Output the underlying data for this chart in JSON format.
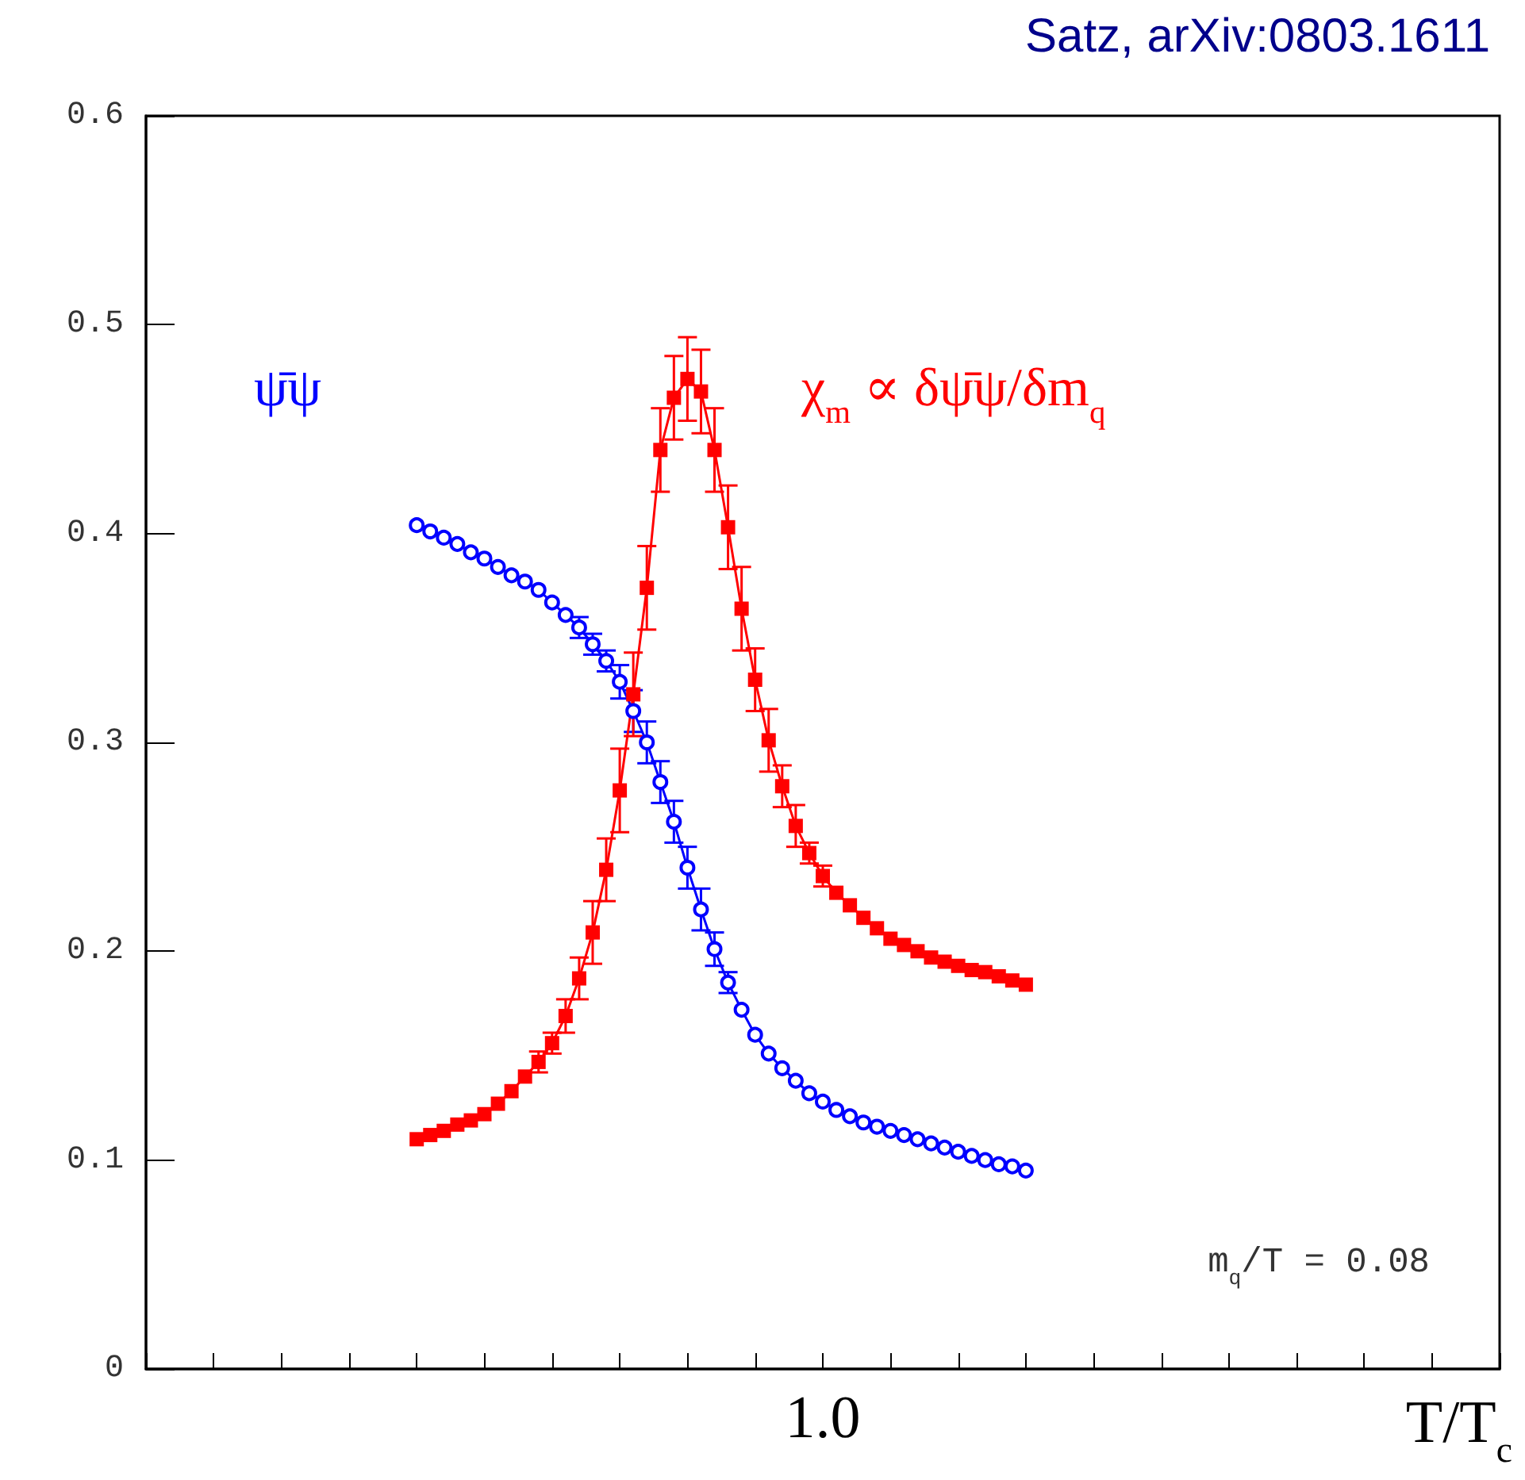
{
  "chart_data": {
    "type": "line",
    "xlabel": "T/T$_{c}$",
    "annotations": [
      "Satz, arXiv:0803.1611",
      "m$_{q}$/T = 0.08"
    ],
    "categories": [
      null,
      null,
      null,
      null,
      null,
      null,
      null,
      null,
      null,
      null,
      null,
      null,
      null,
      null,
      null,
      null,
      null,
      null,
      null,
      null,
      null,
      null,
      null,
      null,
      null,
      null,
      null,
      null,
      null,
      null,
      null,
      null,
      null,
      null,
      null,
      null,
      null,
      null,
      null,
      null,
      null,
      null,
      null,
      null,
      null,
      null,
      null,
      null,
      null,
      null,
      "1.0",
      null,
      null,
      null,
      null,
      null,
      null,
      null,
      null,
      null,
      null,
      null,
      null,
      null,
      null,
      null,
      null,
      null,
      null,
      null,
      null,
      null,
      null,
      null,
      null,
      null,
      null,
      null,
      null,
      null,
      null,
      null,
      null,
      null,
      null,
      null,
      null,
      null,
      null,
      null,
      null,
      null,
      null,
      null,
      null,
      null,
      null,
      null,
      null,
      null,
      null
    ],
    "ylim": [
      0,
      0.6
    ],
    "yticks": [
      0,
      0.1,
      0.2,
      0.3,
      0.4,
      0.5,
      0.6
    ],
    "grid": false,
    "legend": false,
    "line_style": "solid",
    "series": [
      {
        "name": "ψ̄ψ",
        "color": "#0000ff",
        "marker": "circle",
        "values": [
          null,
          null,
          null,
          null,
          null,
          null,
          null,
          null,
          null,
          null,
          null,
          null,
          null,
          null,
          null,
          null,
          null,
          null,
          null,
          null,
          0.404,
          0.401,
          0.398,
          0.395,
          0.391,
          0.388,
          0.384,
          0.38,
          0.377,
          0.373,
          0.367,
          0.361,
          0.355,
          0.347,
          0.339,
          0.329,
          0.315,
          0.3,
          0.281,
          0.262,
          0.24,
          0.22,
          0.201,
          0.185,
          0.172,
          0.16,
          0.151,
          0.144,
          0.138,
          0.132,
          0.128,
          0.124,
          0.121,
          0.118,
          0.116,
          0.114,
          0.112,
          0.11,
          0.108,
          0.106,
          0.104,
          0.102,
          0.1,
          0.098,
          0.097,
          0.095,
          null,
          null,
          null,
          null,
          null,
          null,
          null,
          null,
          null,
          null,
          null,
          null,
          null,
          null,
          null,
          null,
          null,
          null,
          null,
          null,
          null,
          null,
          null,
          null,
          null,
          null,
          null,
          null,
          null,
          null,
          null,
          null,
          null,
          null,
          null
        ],
        "errors": [
          null,
          null,
          null,
          null,
          null,
          null,
          null,
          null,
          null,
          null,
          null,
          null,
          null,
          null,
          null,
          null,
          null,
          null,
          null,
          null,
          null,
          null,
          null,
          null,
          null,
          null,
          null,
          null,
          null,
          null,
          null,
          null,
          0.005,
          0.005,
          0.005,
          0.008,
          0.01,
          0.01,
          0.01,
          0.01,
          0.01,
          0.01,
          0.008,
          0.005,
          null,
          null,
          null,
          null,
          null,
          null,
          null,
          null,
          null,
          null,
          null,
          null,
          null,
          null,
          null,
          null,
          null,
          null,
          null,
          null,
          null,
          null,
          null,
          null,
          null,
          null,
          null,
          null,
          null,
          null,
          null,
          null,
          null,
          null,
          null,
          null,
          null,
          null,
          null,
          null,
          null,
          null,
          null,
          null,
          null,
          null,
          null,
          null,
          null,
          null,
          null,
          null,
          null,
          null,
          null,
          null,
          null
        ]
      },
      {
        "name": "χ$_{m}$ ∝ δψ̄ψ/δm$_{q}$",
        "color": "#ff0000",
        "marker": "square",
        "values": [
          null,
          null,
          null,
          null,
          null,
          null,
          null,
          null,
          null,
          null,
          null,
          null,
          null,
          null,
          null,
          null,
          null,
          null,
          null,
          null,
          0.11,
          0.112,
          0.114,
          0.117,
          0.119,
          0.122,
          0.127,
          0.133,
          0.14,
          0.147,
          0.156,
          0.169,
          0.187,
          0.209,
          0.239,
          0.277,
          0.323,
          0.374,
          0.44,
          0.465,
          0.474,
          0.468,
          0.44,
          0.403,
          0.364,
          0.33,
          0.301,
          0.279,
          0.26,
          0.247,
          0.236,
          0.228,
          0.222,
          0.216,
          0.211,
          0.206,
          0.203,
          0.2,
          0.197,
          0.195,
          0.193,
          0.191,
          0.19,
          0.188,
          0.186,
          0.184,
          null,
          null,
          null,
          null,
          null,
          null,
          null,
          null,
          null,
          null,
          null,
          null,
          null,
          null,
          null,
          null,
          null,
          null,
          null,
          null,
          null,
          null,
          null,
          null,
          null,
          null,
          null,
          null,
          null,
          null,
          null,
          null,
          null,
          null,
          null
        ],
        "errors": [
          null,
          null,
          null,
          null,
          null,
          null,
          null,
          null,
          null,
          null,
          null,
          null,
          null,
          null,
          null,
          null,
          null,
          null,
          null,
          null,
          null,
          null,
          null,
          null,
          null,
          null,
          null,
          null,
          null,
          0.005,
          0.005,
          0.008,
          0.01,
          0.015,
          0.015,
          0.02,
          0.02,
          0.02,
          0.02,
          0.02,
          0.02,
          0.02,
          0.02,
          0.02,
          0.02,
          0.015,
          0.015,
          0.01,
          0.01,
          0.005,
          0.005,
          null,
          null,
          null,
          null,
          null,
          null,
          null,
          null,
          null,
          null,
          null,
          null,
          null,
          null,
          null,
          null,
          null,
          null,
          null,
          null,
          null,
          null,
          null,
          null,
          null,
          null,
          null,
          null,
          null,
          null,
          null,
          null,
          null,
          null,
          null,
          null,
          null,
          null,
          null,
          null,
          null,
          null,
          null,
          null,
          null,
          null,
          null,
          null,
          null,
          null
        ]
      }
    ]
  }
}
